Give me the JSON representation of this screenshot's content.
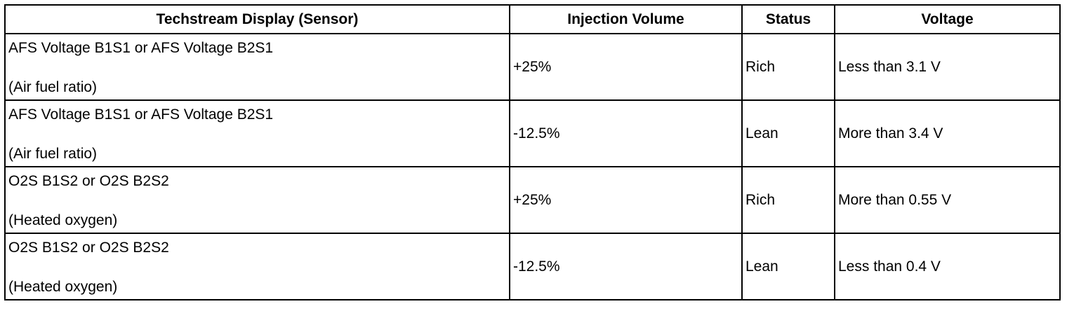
{
  "table": {
    "headers": {
      "sensor": "Techstream Display (Sensor)",
      "injection_volume": "Injection Volume",
      "status": "Status",
      "voltage": "Voltage"
    },
    "rows": [
      {
        "sensor": "AFS Voltage B1S1 or AFS Voltage B2S1",
        "description": "(Air fuel ratio)",
        "injection_volume": "+25%",
        "status": "Rich",
        "voltage": "Less than 3.1 V"
      },
      {
        "sensor": "AFS Voltage B1S1 or AFS Voltage B2S1",
        "description": "(Air fuel ratio)",
        "injection_volume": "-12.5%",
        "status": "Lean",
        "voltage": "More than 3.4 V"
      },
      {
        "sensor": "O2S B1S2 or O2S B2S2",
        "description": "(Heated oxygen)",
        "injection_volume": "+25%",
        "status": "Rich",
        "voltage": "More than 0.55 V"
      },
      {
        "sensor": "O2S B1S2 or O2S B2S2",
        "description": "(Heated oxygen)",
        "injection_volume": "-12.5%",
        "status": "Lean",
        "voltage": "Less than 0.4 V"
      }
    ]
  }
}
